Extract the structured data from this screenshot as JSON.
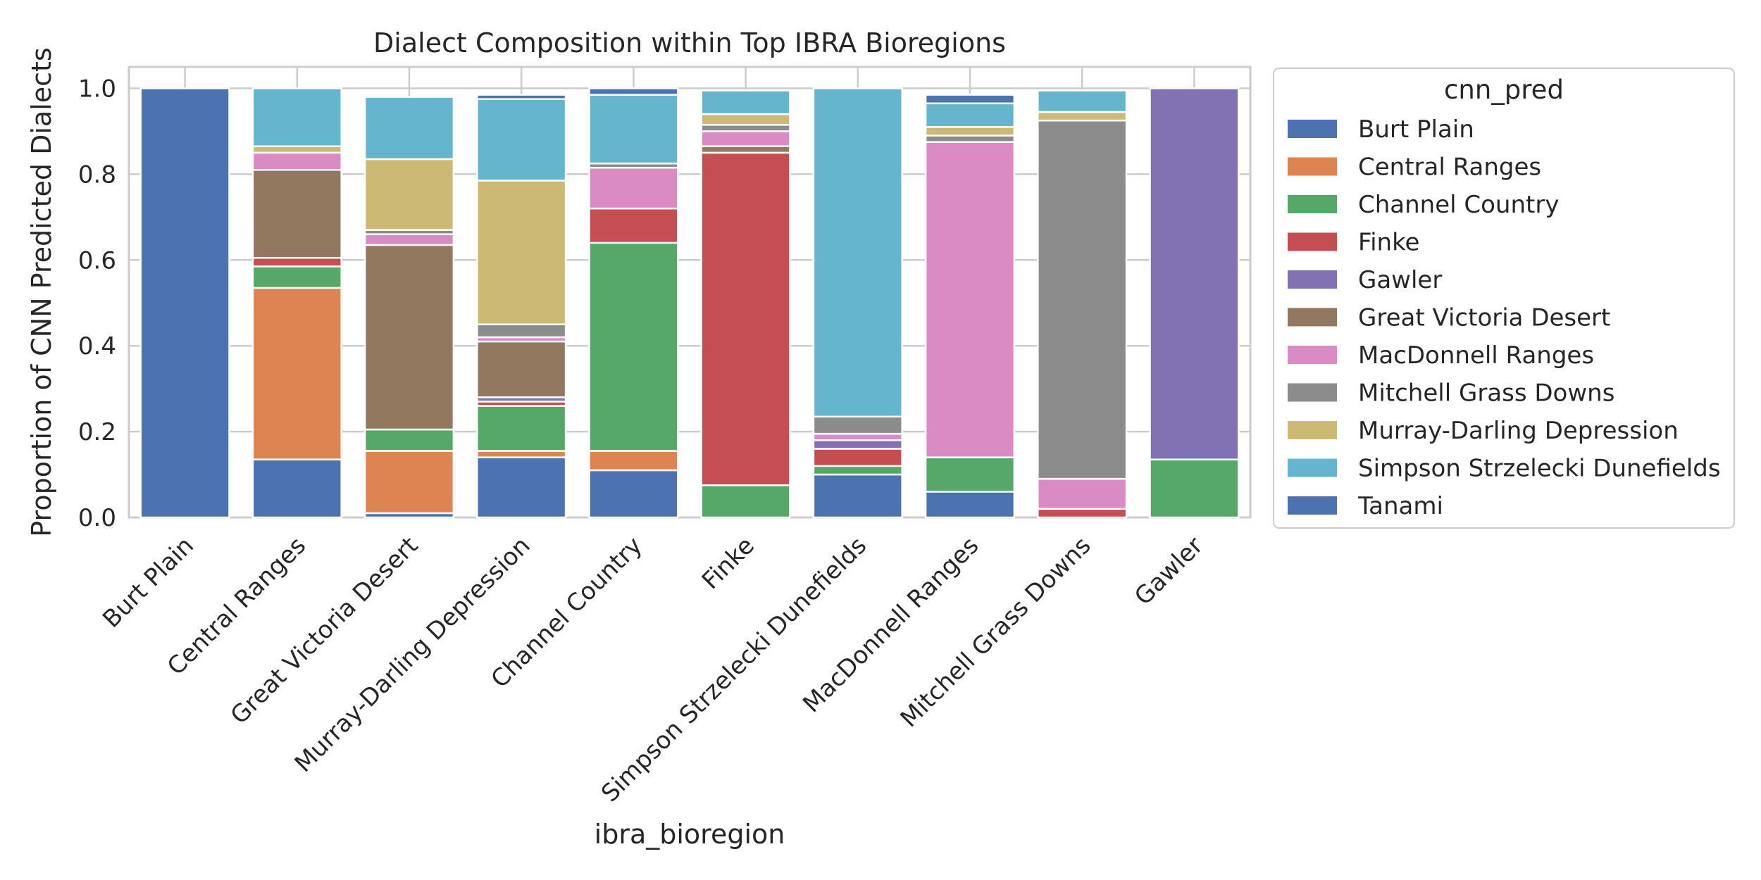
{
  "chart_data": {
    "type": "bar",
    "stacked": true,
    "title": "Dialect Composition within Top IBRA Bioregions",
    "xlabel": "ibra_bioregion",
    "ylabel": "Proportion of CNN Predicted Dialects",
    "ylim": [
      0,
      1.05
    ],
    "yticks": [
      "0.0",
      "0.2",
      "0.4",
      "0.6",
      "0.8",
      "1.0"
    ],
    "grid": true,
    "legend_title": "cnn_pred",
    "legend_position": "outside-right",
    "categories": [
      "Burt Plain",
      "Central Ranges",
      "Great Victoria Desert",
      "Murray-Darling Depression",
      "Channel Country",
      "Finke",
      "Simpson Strzelecki Dunefields",
      "MacDonnell Ranges",
      "Mitchell Grass Downs",
      "Gawler"
    ],
    "series": [
      {
        "name": "Burt Plain",
        "color": "#4c72b0",
        "values": [
          1.0,
          0.135,
          0.01,
          0.14,
          0.11,
          0.0,
          0.1,
          0.06,
          0.0,
          0.0
        ]
      },
      {
        "name": "Central Ranges",
        "color": "#dd8452",
        "values": [
          0.0,
          0.4,
          0.145,
          0.015,
          0.045,
          0.0,
          0.0,
          0.0,
          0.0,
          0.0
        ]
      },
      {
        "name": "Channel Country",
        "color": "#55a868",
        "values": [
          0.0,
          0.05,
          0.05,
          0.105,
          0.485,
          0.075,
          0.02,
          0.08,
          0.0,
          0.135
        ]
      },
      {
        "name": "Finke",
        "color": "#c44e52",
        "values": [
          0.0,
          0.02,
          0.0,
          0.01,
          0.08,
          0.775,
          0.04,
          0.0,
          0.02,
          0.0
        ]
      },
      {
        "name": "Gawler",
        "color": "#8172b3",
        "values": [
          0.0,
          0.0,
          0.0,
          0.01,
          0.0,
          0.0,
          0.02,
          0.0,
          0.0,
          0.865
        ]
      },
      {
        "name": "Great Victoria Desert",
        "color": "#937860",
        "values": [
          0.0,
          0.205,
          0.43,
          0.13,
          0.0,
          0.015,
          0.0,
          0.0,
          0.0,
          0.0
        ]
      },
      {
        "name": "MacDonnell Ranges",
        "color": "#da8bc3",
        "values": [
          0.0,
          0.04,
          0.025,
          0.01,
          0.095,
          0.035,
          0.015,
          0.735,
          0.07,
          0.0
        ]
      },
      {
        "name": "Mitchell Grass Downs",
        "color": "#8c8c8c",
        "values": [
          0.0,
          0.0,
          0.01,
          0.03,
          0.01,
          0.015,
          0.04,
          0.015,
          0.835,
          0.0
        ]
      },
      {
        "name": "Murray-Darling Depression",
        "color": "#ccb974",
        "values": [
          0.0,
          0.015,
          0.165,
          0.335,
          0.0,
          0.025,
          0.0,
          0.02,
          0.02,
          0.0
        ]
      },
      {
        "name": "Simpson Strzelecki Dunefields",
        "color": "#64b5cd",
        "values": [
          0.0,
          0.135,
          0.145,
          0.19,
          0.16,
          0.055,
          0.765,
          0.055,
          0.05,
          0.0
        ]
      },
      {
        "name": "Tanami",
        "color": "#4c72b0",
        "values": [
          0.0,
          0.0,
          0.0,
          0.01,
          0.015,
          0.0,
          0.0,
          0.02,
          0.0,
          0.0
        ]
      }
    ]
  }
}
